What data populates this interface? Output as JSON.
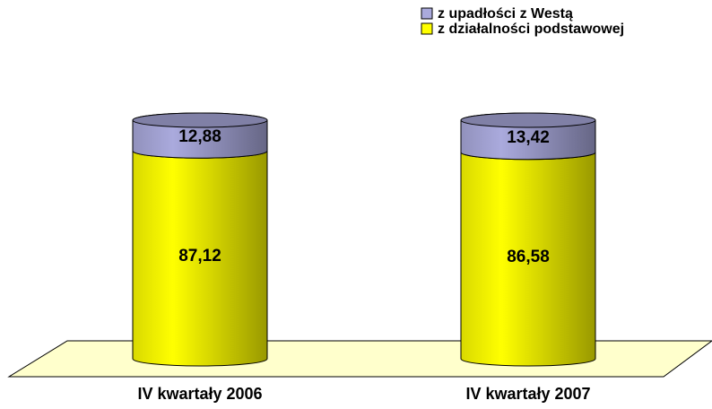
{
  "chart_data": {
    "type": "bar",
    "stacked": true,
    "categories": [
      "IV kwartały 2006",
      "IV kwartały 2007"
    ],
    "series": [
      {
        "name": "z działalności podstawowej",
        "color": "#ffff00",
        "values": [
          87.12,
          86.58
        ],
        "value_labels": [
          "87,12",
          "86,58"
        ]
      },
      {
        "name": "z upadłości z Westą",
        "color": "#aaaadd",
        "values": [
          12.88,
          13.42
        ],
        "value_labels": [
          "12,88",
          "13,42"
        ]
      }
    ],
    "legend": "top-right"
  }
}
